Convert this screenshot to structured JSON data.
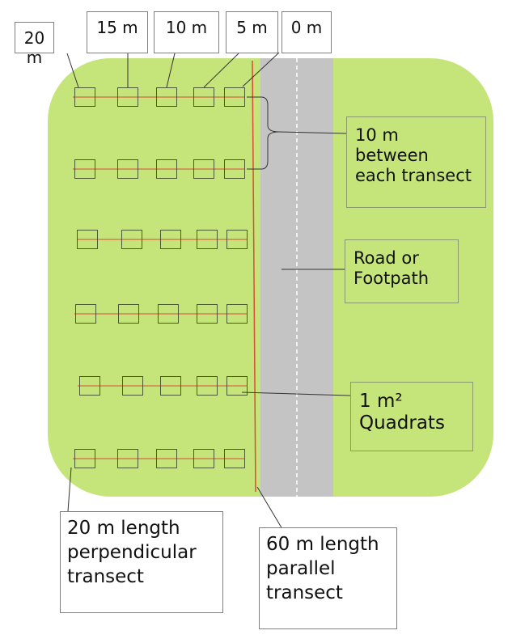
{
  "colors": {
    "field": "#c5e57a",
    "road": "#c4c4c4",
    "transect_line": "#d94b3a",
    "quadrat_border": "#3d4a2a",
    "leader_line": "#333333"
  },
  "distance_labels": [
    "20 m",
    "15 m",
    "10 m",
    "5 m",
    "0 m"
  ],
  "callouts": {
    "between": [
      "10 m",
      "between",
      "each transect"
    ],
    "road": [
      "Road or",
      "Footpath"
    ],
    "quadrats": [
      "1 m²",
      "Quadrats"
    ],
    "perpendicular": [
      "20 m length",
      "perpendicular",
      "transect"
    ],
    "parallel": [
      "60 m length",
      "parallel",
      "transect"
    ]
  },
  "transects": {
    "perpendicular_count": 6,
    "quadrats_per_transect": 5
  }
}
